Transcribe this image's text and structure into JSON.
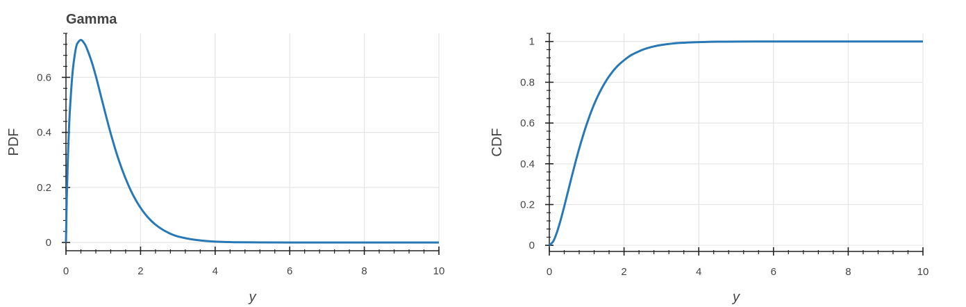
{
  "chart_data": [
    {
      "type": "line",
      "title": "Gamma",
      "xlabel": "y",
      "ylabel": "PDF",
      "xlim": [
        0,
        10
      ],
      "ylim": [
        -0.03,
        0.76
      ],
      "xticks": [
        0,
        2,
        4,
        6,
        8,
        10
      ],
      "xtick_labels": [
        "0",
        "2",
        "4",
        "6",
        "8",
        "10"
      ],
      "yticks": [
        0,
        0.2,
        0.4,
        0.6
      ],
      "ytick_labels": [
        "0",
        "0.2",
        "0.4",
        "0.6"
      ],
      "grid": true,
      "line_color": "#2878b5",
      "series": [
        {
          "x": [
            0,
            0.02,
            0.05,
            0.1,
            0.2,
            0.3,
            0.4,
            0.5,
            0.6,
            0.7,
            0.8,
            1.0,
            1.2,
            1.4,
            1.6,
            1.8,
            2.0,
            2.2,
            2.4,
            2.6,
            2.8,
            3.0,
            3.5,
            4.0,
            4.5,
            5.0,
            6.0,
            7.0,
            8.0,
            9.0,
            10.0
          ],
          "y": [
            0,
            0.156,
            0.3,
            0.468,
            0.647,
            0.722,
            0.736,
            0.722,
            0.691,
            0.652,
            0.605,
            0.499,
            0.396,
            0.306,
            0.232,
            0.172,
            0.126,
            0.091,
            0.065,
            0.046,
            0.032,
            0.022,
            0.009,
            0.003,
            0.001,
            0.0005,
            0,
            0,
            0,
            0,
            0
          ]
        }
      ]
    },
    {
      "type": "line",
      "title": "",
      "xlabel": "y",
      "ylabel": "CDF",
      "xlim": [
        0,
        10
      ],
      "ylim": [
        -0.03,
        1.04
      ],
      "xticks": [
        0,
        2,
        4,
        6,
        8,
        10
      ],
      "xtick_labels": [
        "0",
        "2",
        "4",
        "6",
        "8",
        "10"
      ],
      "yticks": [
        0,
        0.2,
        0.4,
        0.6,
        0.8,
        1
      ],
      "ytick_labels": [
        "0",
        "0.2",
        "0.4",
        "0.6",
        "0.8",
        "1"
      ],
      "grid": true,
      "line_color": "#2878b5",
      "series": [
        {
          "x": [
            0,
            0.1,
            0.2,
            0.3,
            0.4,
            0.5,
            0.6,
            0.7,
            0.8,
            1.0,
            1.2,
            1.4,
            1.6,
            1.8,
            2.0,
            2.2,
            2.4,
            2.6,
            2.8,
            3.0,
            3.5,
            4.0,
            4.5,
            5.0,
            6.0,
            7.0,
            8.0,
            9.0,
            10.0
          ],
          "y": [
            0,
            0.018,
            0.062,
            0.122,
            0.191,
            0.264,
            0.337,
            0.408,
            0.475,
            0.594,
            0.692,
            0.769,
            0.829,
            0.875,
            0.908,
            0.934,
            0.952,
            0.966,
            0.976,
            0.983,
            0.993,
            0.997,
            0.999,
            0.9995,
            1.0,
            1.0,
            1.0,
            1.0,
            1.0
          ]
        }
      ]
    }
  ]
}
